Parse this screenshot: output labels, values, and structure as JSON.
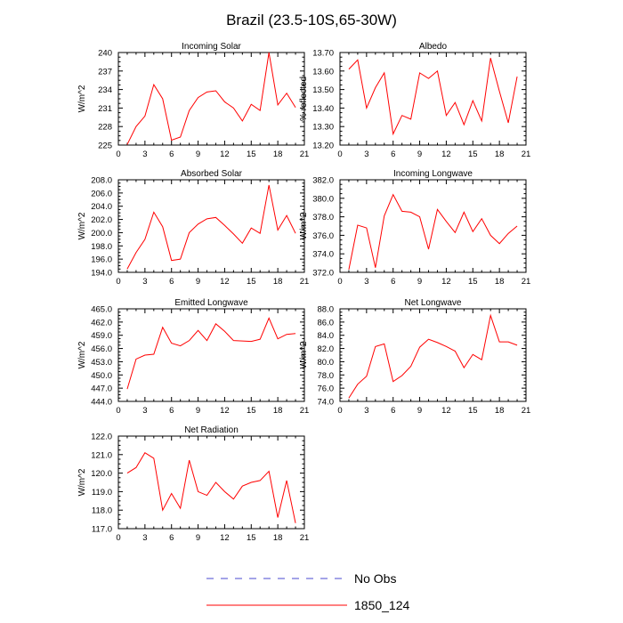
{
  "title": "Brazil (23.5-10S,65-30W)",
  "legend": {
    "obs_label": "No Obs",
    "model_label": "1850_124",
    "obs_color": "#4a4ad0",
    "model_color": "#ff0000"
  },
  "chart_data": [
    {
      "type": "line",
      "title": "Incoming Solar",
      "ylabel": "W/m^2",
      "xlim": [
        0,
        21
      ],
      "ylim": [
        225,
        240
      ],
      "xticks": [
        "0",
        "3",
        "6",
        "9",
        "12",
        "15",
        "18",
        "21"
      ],
      "yticks": [
        "225",
        "228",
        "231",
        "234",
        "237",
        "240"
      ],
      "x": [
        1,
        2,
        3,
        4,
        5,
        6,
        7,
        8,
        9,
        10,
        11,
        12,
        13,
        14,
        15,
        16,
        17,
        18,
        19,
        20
      ],
      "series": [
        {
          "values": [
            225.1,
            228.0,
            229.7,
            234.8,
            232.5,
            225.8,
            226.3,
            230.6,
            232.7,
            233.6,
            233.8,
            232.0,
            231.0,
            228.9,
            231.6,
            230.6,
            240.0,
            231.5,
            233.4,
            231.1
          ]
        }
      ]
    },
    {
      "type": "line",
      "title": "Albedo",
      "ylabel": "% reflected",
      "xlim": [
        0,
        21
      ],
      "ylim": [
        13.2,
        13.7
      ],
      "xticks": [
        "0",
        "3",
        "6",
        "9",
        "12",
        "15",
        "18",
        "21"
      ],
      "yticks": [
        "13.20",
        "13.30",
        "13.40",
        "13.50",
        "13.60",
        "13.70"
      ],
      "x": [
        1,
        2,
        3,
        4,
        5,
        6,
        7,
        8,
        9,
        10,
        11,
        12,
        13,
        14,
        15,
        16,
        17,
        18,
        19,
        20
      ],
      "series": [
        {
          "values": [
            13.61,
            13.66,
            13.4,
            13.51,
            13.59,
            13.26,
            13.36,
            13.34,
            13.59,
            13.56,
            13.6,
            13.36,
            13.43,
            13.31,
            13.44,
            13.33,
            13.67,
            13.49,
            13.32,
            13.57
          ]
        }
      ]
    },
    {
      "type": "line",
      "title": "Absorbed Solar",
      "ylabel": "W/m^2",
      "xlim": [
        0,
        21
      ],
      "ylim": [
        194.0,
        208.0
      ],
      "xticks": [
        "0",
        "3",
        "6",
        "9",
        "12",
        "15",
        "18",
        "21"
      ],
      "yticks": [
        "194.0",
        "196.0",
        "198.0",
        "200.0",
        "202.0",
        "204.0",
        "206.0",
        "208.0"
      ],
      "x": [
        1,
        2,
        3,
        4,
        5,
        6,
        7,
        8,
        9,
        10,
        11,
        12,
        13,
        14,
        15,
        16,
        17,
        18,
        19,
        20
      ],
      "series": [
        {
          "values": [
            194.5,
            197.0,
            199.0,
            203.1,
            200.9,
            195.8,
            196.0,
            200.0,
            201.3,
            202.1,
            202.3,
            201.1,
            199.8,
            198.4,
            200.7,
            199.9,
            207.2,
            200.4,
            202.6,
            199.9
          ]
        }
      ]
    },
    {
      "type": "line",
      "title": "Incoming Longwave",
      "ylabel": "W/m^2",
      "xlim": [
        0,
        21
      ],
      "ylim": [
        372.0,
        382.0
      ],
      "xticks": [
        "0",
        "3",
        "6",
        "9",
        "12",
        "15",
        "18",
        "21"
      ],
      "yticks": [
        "372.0",
        "374.0",
        "376.0",
        "378.0",
        "380.0",
        "382.0"
      ],
      "x": [
        1,
        2,
        3,
        4,
        5,
        6,
        7,
        8,
        9,
        10,
        11,
        12,
        13,
        14,
        15,
        16,
        17,
        18,
        19,
        20
      ],
      "series": [
        {
          "values": [
            372.3,
            377.1,
            376.8,
            372.5,
            378.1,
            380.4,
            378.6,
            378.5,
            378.0,
            374.5,
            378.8,
            377.5,
            376.3,
            378.5,
            376.4,
            377.8,
            376.0,
            375.1,
            376.2,
            377.0
          ]
        }
      ]
    },
    {
      "type": "line",
      "title": "Emitted Longwave",
      "ylabel": "W/m^2",
      "xlim": [
        0,
        21
      ],
      "ylim": [
        444.0,
        465.0
      ],
      "xticks": [
        "0",
        "3",
        "6",
        "9",
        "12",
        "15",
        "18",
        "21"
      ],
      "yticks": [
        "444.0",
        "447.0",
        "450.0",
        "453.0",
        "456.0",
        "459.0",
        "462.0",
        "465.0"
      ],
      "x": [
        1,
        2,
        3,
        4,
        5,
        6,
        7,
        8,
        9,
        10,
        11,
        12,
        13,
        14,
        15,
        16,
        17,
        18,
        19,
        20
      ],
      "series": [
        {
          "values": [
            446.8,
            453.6,
            454.5,
            454.7,
            460.8,
            457.2,
            456.6,
            457.8,
            460.1,
            457.8,
            461.6,
            459.9,
            457.8,
            457.7,
            457.6,
            458.1,
            462.9,
            458.2,
            459.2,
            459.4
          ]
        }
      ]
    },
    {
      "type": "line",
      "title": "Net Longwave",
      "ylabel": "W/m^2",
      "xlim": [
        0,
        21
      ],
      "ylim": [
        74.0,
        88.0
      ],
      "xticks": [
        "0",
        "3",
        "6",
        "9",
        "12",
        "15",
        "18",
        "21"
      ],
      "yticks": [
        "74.0",
        "76.0",
        "78.0",
        "80.0",
        "82.0",
        "84.0",
        "86.0",
        "88.0"
      ],
      "x": [
        1,
        2,
        3,
        4,
        5,
        6,
        7,
        8,
        9,
        10,
        11,
        12,
        13,
        14,
        15,
        16,
        17,
        18,
        19,
        20
      ],
      "series": [
        {
          "values": [
            74.5,
            76.6,
            77.8,
            82.3,
            82.7,
            77.0,
            77.9,
            79.3,
            82.2,
            83.4,
            82.9,
            82.3,
            81.6,
            79.1,
            81.1,
            80.3,
            87.0,
            83.0,
            83.0,
            82.5
          ]
        }
      ]
    },
    {
      "type": "line",
      "title": "Net Radiation",
      "ylabel": "W/m^2",
      "xlim": [
        0,
        21
      ],
      "ylim": [
        117.0,
        122.0
      ],
      "xticks": [
        "0",
        "3",
        "6",
        "9",
        "12",
        "15",
        "18",
        "21"
      ],
      "yticks": [
        "117.0",
        "118.0",
        "119.0",
        "120.0",
        "121.0",
        "122.0"
      ],
      "x": [
        1,
        2,
        3,
        4,
        5,
        6,
        7,
        8,
        9,
        10,
        11,
        12,
        13,
        14,
        15,
        16,
        17,
        18,
        19,
        20
      ],
      "series": [
        {
          "values": [
            120.0,
            120.3,
            121.1,
            120.8,
            118.0,
            118.9,
            118.1,
            120.7,
            119.0,
            118.8,
            119.5,
            119.0,
            118.6,
            119.3,
            119.5,
            119.6,
            120.1,
            117.6,
            119.6,
            117.3
          ]
        }
      ]
    }
  ]
}
